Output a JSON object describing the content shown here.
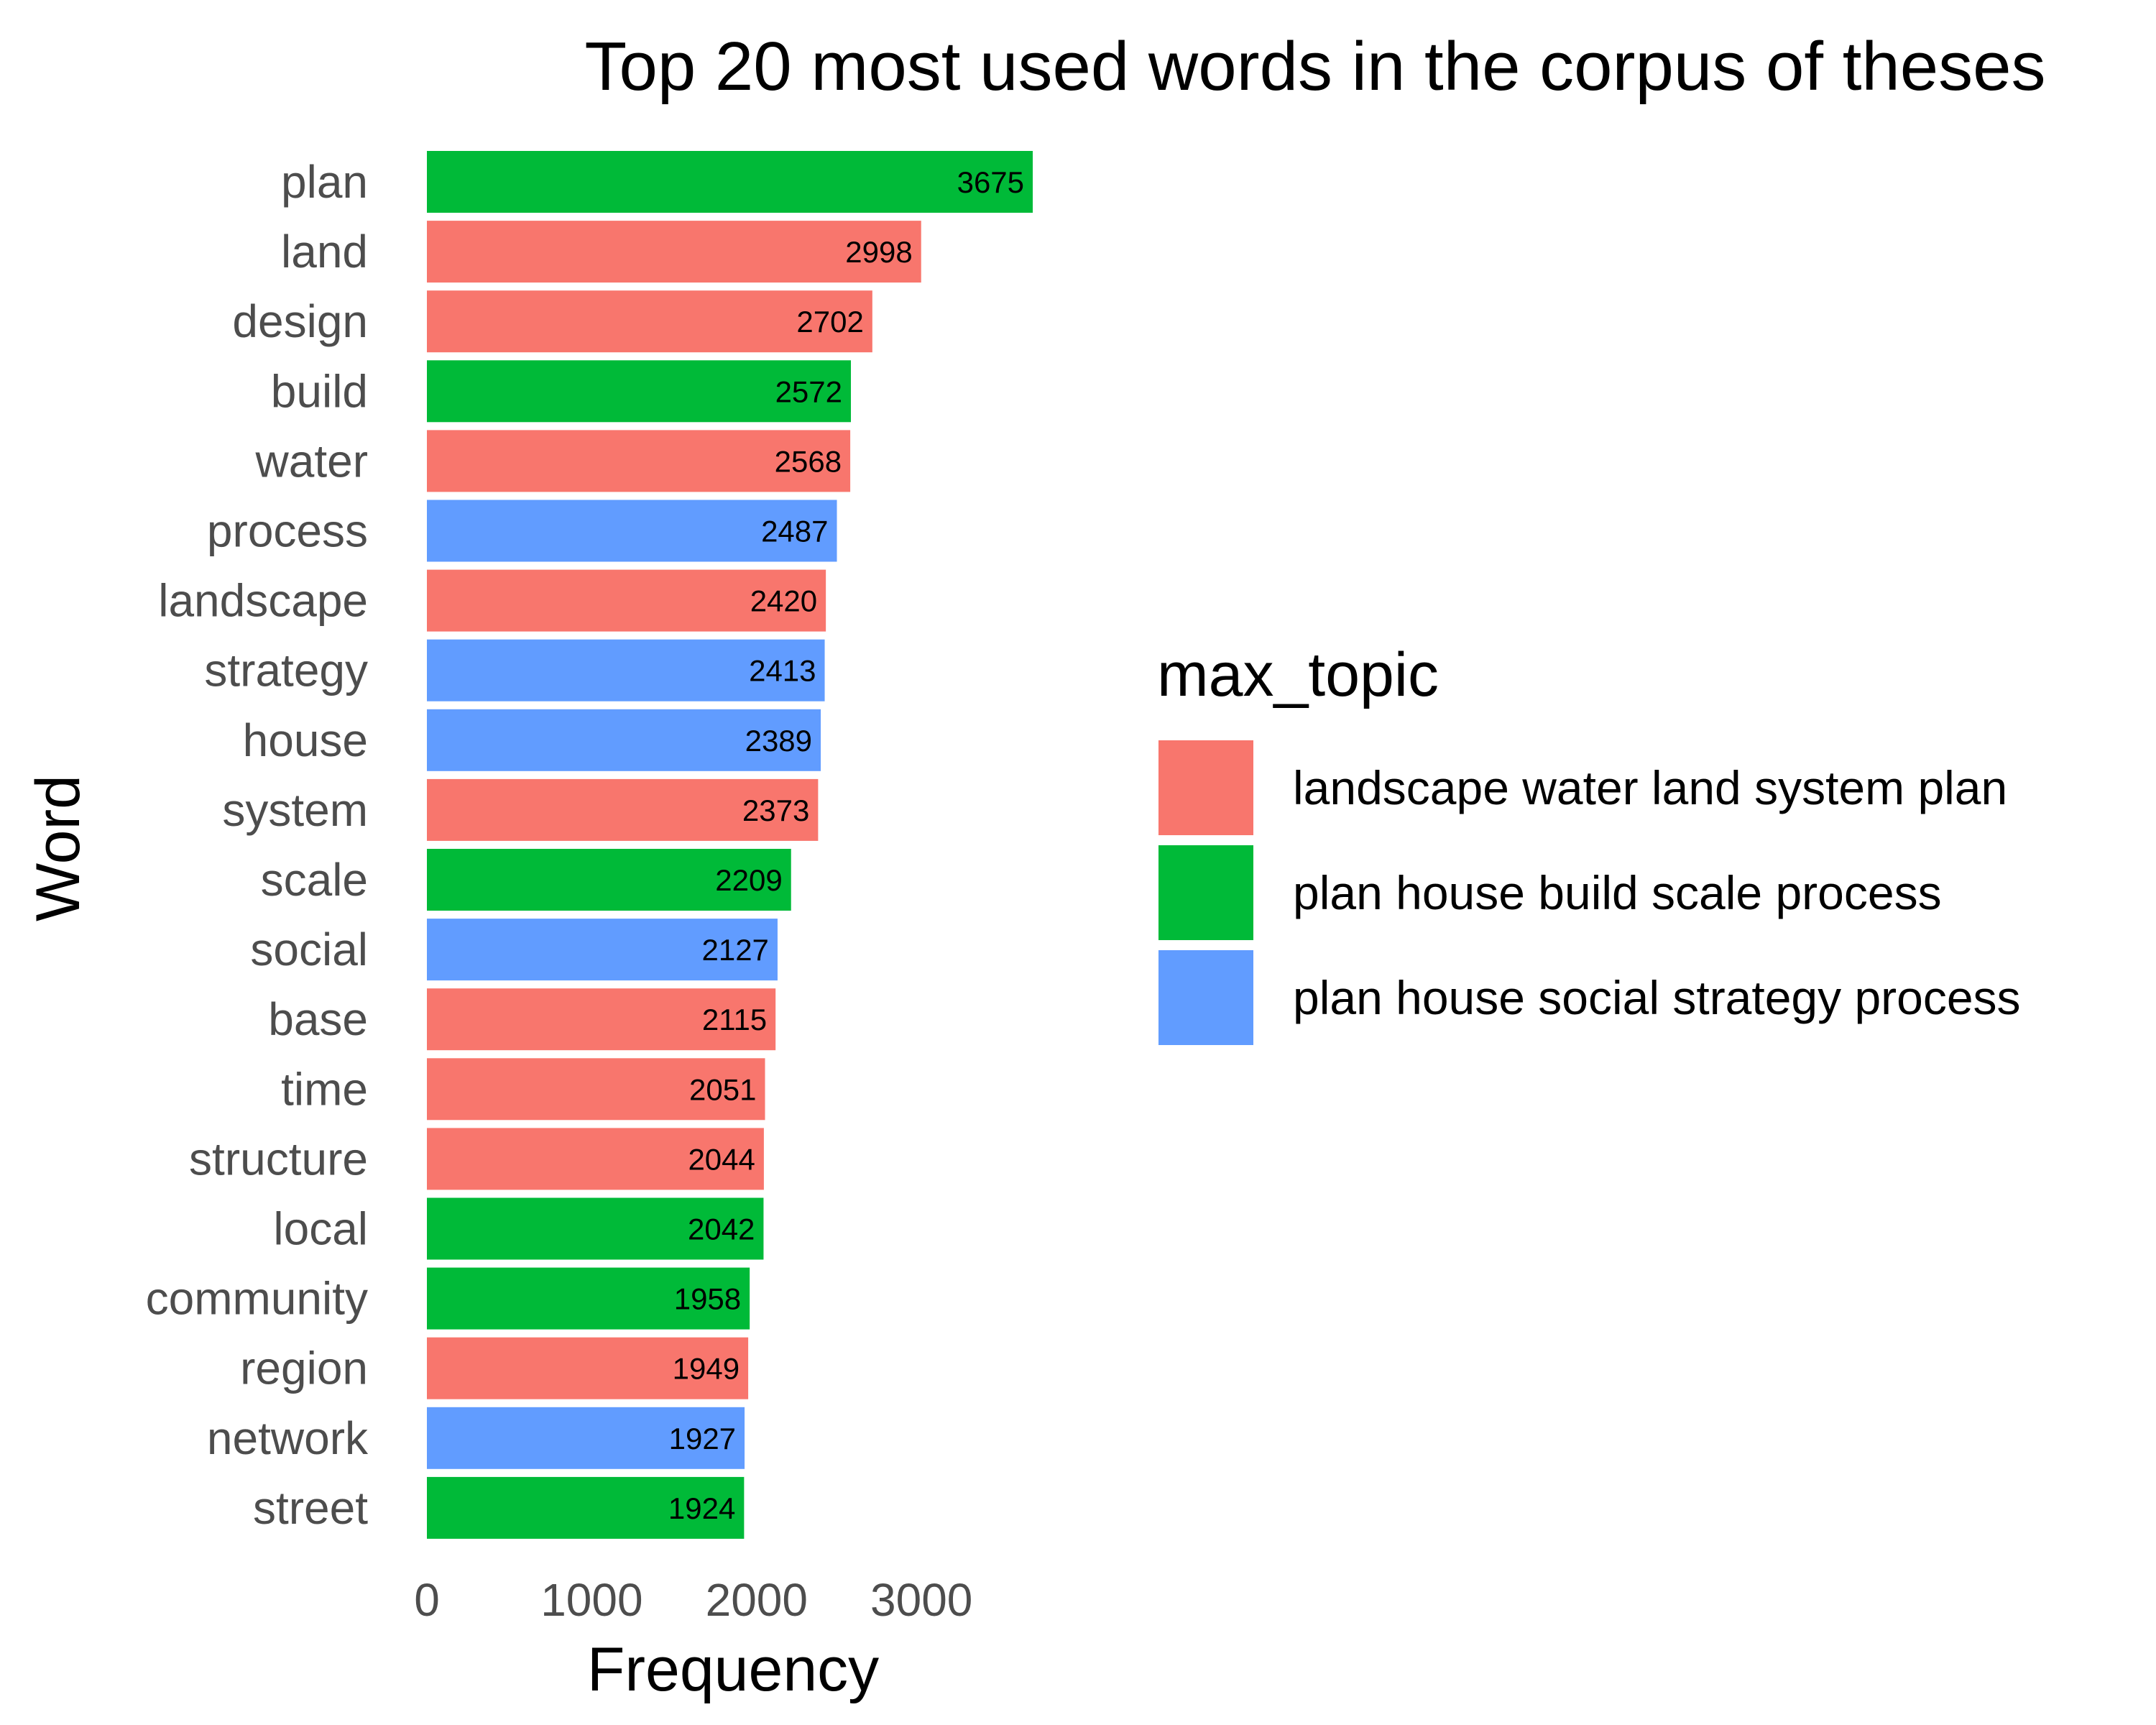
{
  "chart_data": {
    "type": "bar",
    "orientation": "horizontal",
    "title": "Top 20 most used words in the corpus of theses",
    "xlabel": "Frequency",
    "ylabel": "Word",
    "xlim": [
      0,
      3675
    ],
    "xticks": [
      0,
      1000,
      2000,
      3000
    ],
    "grid": false,
    "legend_position": "right",
    "legend_title": "max_topic",
    "groups": [
      {
        "name": "landscape water land system plan",
        "color": "#F8766D"
      },
      {
        "name": "plan house build scale process",
        "color": "#00BA38"
      },
      {
        "name": "plan house social strategy process",
        "color": "#619CFF"
      }
    ],
    "categories": [
      "plan",
      "land",
      "design",
      "build",
      "water",
      "process",
      "landscape",
      "strategy",
      "house",
      "system",
      "scale",
      "social",
      "base",
      "time",
      "structure",
      "local",
      "community",
      "region",
      "network",
      "street"
    ],
    "values": [
      3675,
      2998,
      2702,
      2572,
      2568,
      2487,
      2420,
      2413,
      2389,
      2373,
      2209,
      2127,
      2115,
      2051,
      2044,
      2042,
      1958,
      1949,
      1927,
      1924
    ],
    "value_labels": [
      "3675",
      "2998",
      "2702",
      "2572",
      "2568",
      "2487",
      "2420",
      "2413",
      "2389",
      "2373",
      "2209",
      "2127",
      "2115",
      "2051",
      "2044",
      "2042",
      "1958",
      "1949",
      "1927",
      "1924"
    ],
    "group_index": [
      1,
      0,
      0,
      1,
      0,
      2,
      0,
      2,
      2,
      0,
      1,
      2,
      0,
      0,
      0,
      1,
      1,
      0,
      2,
      1
    ]
  }
}
